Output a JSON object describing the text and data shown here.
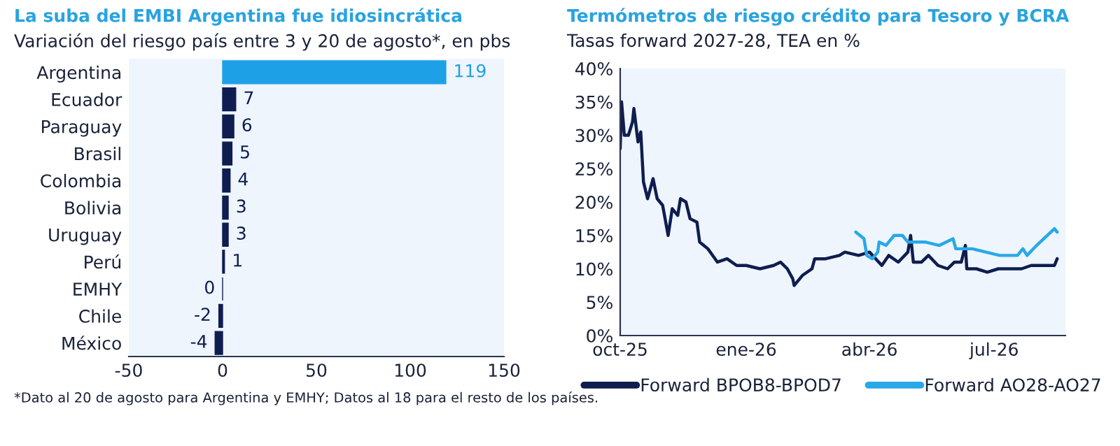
{
  "chart_data": [
    {
      "type": "bar",
      "orientation": "horizontal",
      "title": "La suba del EMBI Argentina fue idiosincrática",
      "subtitle": "Variación del riesgo país entre 3 y 20 de agosto*, en pbs",
      "categories": [
        "Argentina",
        "Ecuador",
        "Paraguay",
        "Brasil",
        "Colombia",
        "Bolivia",
        "Uruguay",
        "Perú",
        "EMHY",
        "Chile",
        "México"
      ],
      "values": [
        119,
        7,
        6,
        5,
        4,
        3,
        3,
        1,
        0,
        -2,
        -4
      ],
      "colors": [
        "#1ea0e6",
        "#0f1d4f",
        "#0f1d4f",
        "#0f1d4f",
        "#0f1d4f",
        "#0f1d4f",
        "#0f1d4f",
        "#0f1d4f",
        "#0f1d4f",
        "#0f1d4f",
        "#0f1d4f"
      ],
      "xlim": [
        -50,
        150
      ],
      "xticks": [
        -50,
        0,
        50,
        100,
        150
      ],
      "data_labels": true,
      "annotations": [
        "*Dato al 20 de agosto para Argentina y EMHY; Datos al 18 para el resto de los países."
      ]
    },
    {
      "type": "line",
      "title": "Termómetros de riesgo crédito para Tesoro y BCRA",
      "subtitle": "Tasas forward 2027-28, TEA en %",
      "xlim": [
        "2025-10-01",
        "2026-08-22"
      ],
      "xticks": [
        {
          "value": "2025-10-01",
          "label": "oct-25"
        },
        {
          "value": "2026-01-01",
          "label": "ene-26"
        },
        {
          "value": "2026-04-01",
          "label": "abr-26"
        },
        {
          "value": "2026-07-01",
          "label": "jul-26"
        }
      ],
      "ylim": [
        0,
        40
      ],
      "yticks": [
        {
          "value": 0,
          "label": "0%"
        },
        {
          "value": 5,
          "label": "5%"
        },
        {
          "value": 10,
          "label": "10%"
        },
        {
          "value": 15,
          "label": "15%"
        },
        {
          "value": 20,
          "label": "20%"
        },
        {
          "value": 25,
          "label": "25%"
        },
        {
          "value": 30,
          "label": "30%"
        },
        {
          "value": 35,
          "label": "35%"
        },
        {
          "value": 40,
          "label": "40%"
        }
      ],
      "legend": "bottom",
      "series": [
        {
          "name": "Forward BPOB8-BPOD7",
          "color": "#0f1d4f",
          "x": [
            "2025-10-01",
            "2025-10-02",
            "2025-10-04",
            "2025-10-07",
            "2025-10-10",
            "2025-10-11",
            "2025-10-14",
            "2025-10-16",
            "2025-10-18",
            "2025-10-21",
            "2025-10-25",
            "2025-10-28",
            "2025-11-01",
            "2025-11-05",
            "2025-11-08",
            "2025-11-12",
            "2025-11-14",
            "2025-11-18",
            "2025-11-21",
            "2025-11-26",
            "2025-11-28",
            "2025-12-04",
            "2025-12-11",
            "2025-12-18",
            "2025-12-25",
            "2026-01-01",
            "2026-01-11",
            "2026-01-21",
            "2026-01-26",
            "2026-01-31",
            "2026-02-04",
            "2026-02-05",
            "2026-02-11",
            "2026-02-18",
            "2026-02-20",
            "2026-02-28",
            "2026-03-10",
            "2026-03-14",
            "2026-03-24",
            "2026-04-01",
            "2026-04-10",
            "2026-04-15",
            "2026-04-22",
            "2026-04-29",
            "2026-05-01",
            "2026-05-03",
            "2026-05-09",
            "2026-05-14",
            "2026-05-21",
            "2026-05-28",
            "2026-06-02",
            "2026-06-07",
            "2026-06-10",
            "2026-06-11",
            "2026-06-18",
            "2026-06-26",
            "2026-07-04",
            "2026-07-14",
            "2026-07-21",
            "2026-07-28",
            "2026-08-07",
            "2026-08-14",
            "2026-08-16"
          ],
          "values": [
            28,
            35,
            30,
            30,
            32,
            34,
            29,
            30.5,
            23,
            20.5,
            23.5,
            20.5,
            19.5,
            15,
            19,
            18,
            20.5,
            20,
            17.5,
            17,
            14,
            13,
            11,
            11.5,
            10.5,
            10.5,
            10,
            10.5,
            11,
            10,
            8.5,
            7.5,
            9,
            10,
            11.5,
            11.5,
            12,
            12.5,
            12,
            12.5,
            10.5,
            12,
            11,
            12.5,
            15,
            11,
            11,
            12,
            10.5,
            10,
            11,
            11,
            13.5,
            10,
            10,
            9.5,
            10,
            10,
            10,
            10.5,
            10.5,
            10.5,
            11.5
          ]
        },
        {
          "name": "Forward AO28-AO27",
          "color": "#29a8e8",
          "x": [
            "2026-03-22",
            "2026-03-28",
            "2026-03-30",
            "2026-04-03",
            "2026-04-07",
            "2026-04-08",
            "2026-04-13",
            "2026-04-19",
            "2026-04-25",
            "2026-04-29",
            "2026-05-12",
            "2026-05-22",
            "2026-06-01",
            "2026-06-03",
            "2026-06-15",
            "2026-06-25",
            "2026-07-05",
            "2026-07-18",
            "2026-07-22",
            "2026-07-25",
            "2026-08-01",
            "2026-08-14",
            "2026-08-16"
          ],
          "values": [
            15.5,
            14.5,
            12,
            11.5,
            12.5,
            14,
            13.5,
            15,
            15,
            14,
            14,
            13.5,
            14.5,
            13,
            13,
            12.5,
            12,
            12,
            13,
            12,
            13.5,
            16,
            15.5
          ]
        }
      ]
    }
  ]
}
